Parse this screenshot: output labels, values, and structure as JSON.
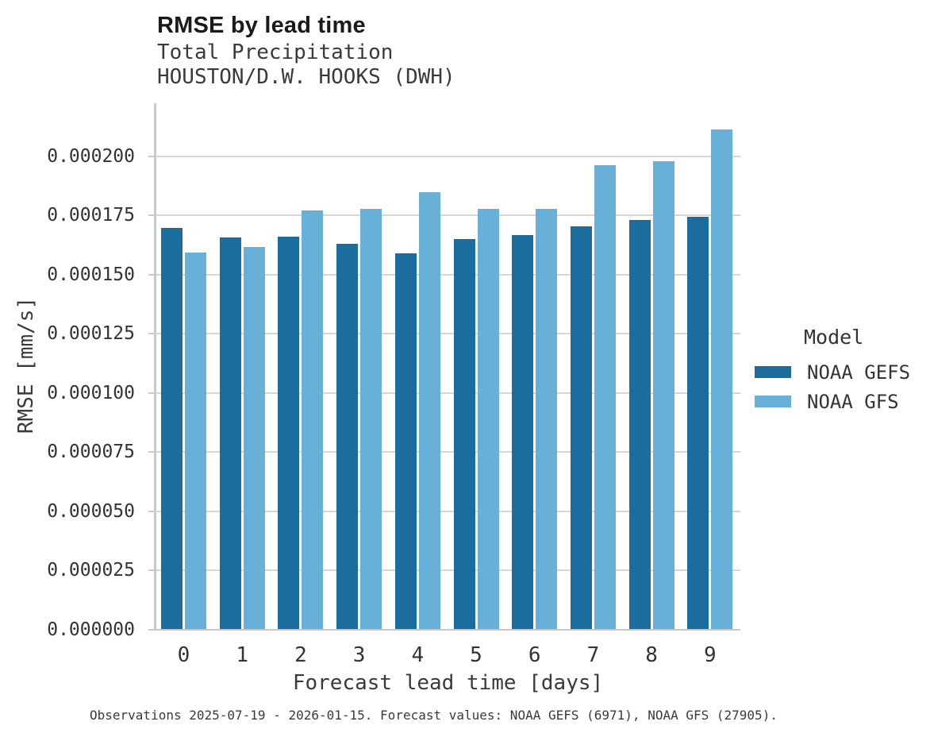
{
  "header": {
    "title": "RMSE by lead time",
    "subtitle1": "Total Precipitation",
    "subtitle2": "HOUSTON/D.W. HOOKS (DWH)"
  },
  "chart_data": {
    "type": "bar",
    "title": "RMSE by lead time",
    "subtitle": [
      "Total Precipitation",
      "HOUSTON/D.W. HOOKS (DWH)"
    ],
    "categories": [
      "0",
      "1",
      "2",
      "3",
      "4",
      "5",
      "6",
      "7",
      "8",
      "9"
    ],
    "series": [
      {
        "name": "NOAA GEFS",
        "color": "#1a6d9c",
        "values": [
          0.0001695,
          0.0001658,
          0.0001661,
          0.0001628,
          0.0001591,
          0.0001651,
          0.0001665,
          0.0001705,
          0.0001729,
          0.0001745
        ]
      },
      {
        "name": "NOAA GFS",
        "color": "#69b0d8",
        "values": [
          0.0001594,
          0.0001615,
          0.0001772,
          0.0001776,
          0.0001846,
          0.0001776,
          0.0001776,
          0.0001963,
          0.0001977,
          0.0002111
        ]
      }
    ],
    "xlabel": "Forecast lead time [days]",
    "ylabel": "RMSE [mm/s]",
    "ylim": [
      0,
      0.000222
    ],
    "yticks": [
      0,
      2.5e-05,
      5e-05,
      7.5e-05,
      0.0001,
      0.000125,
      0.00015,
      0.000175,
      0.0002
    ],
    "ytick_labels": [
      "0.000000",
      "0.000025",
      "0.000050",
      "0.000075",
      "0.000100",
      "0.000125",
      "0.000150",
      "0.000175",
      "0.000200"
    ],
    "grid": true,
    "legend_title": "Model",
    "legend_position": "right"
  },
  "legend": {
    "title": "Model",
    "entries": [
      {
        "label": "NOAA GEFS",
        "color": "#1a6d9c"
      },
      {
        "label": "NOAA GFS",
        "color": "#69b0d8"
      }
    ]
  },
  "caption": "Observations 2025-07-19 - 2026-01-15. Forecast values: NOAA GEFS (6971), NOAA GFS (27905).",
  "colors": {
    "gefs": "#1a6d9c",
    "gfs": "#69b0d8",
    "gridline": "#d6d6d6",
    "axis": "#c9c9c9",
    "title_text": "#1a1a1a",
    "body_text": "#3a3a3a"
  }
}
